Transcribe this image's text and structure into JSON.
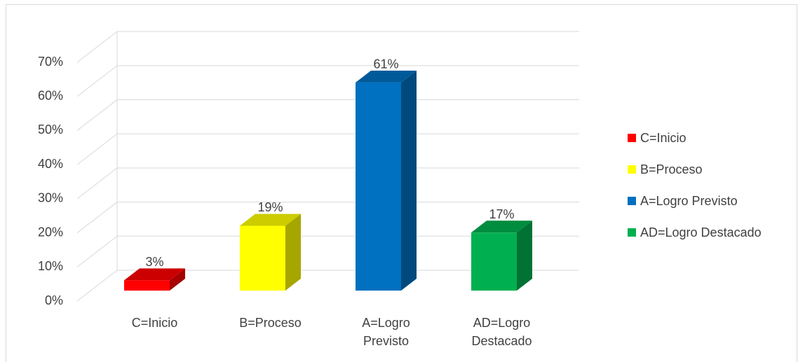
{
  "chart_data": {
    "type": "bar3d",
    "categories": [
      "C=Inicio",
      "B=Proceso",
      "A=Logro Previsto",
      "AD=Logro Destacado"
    ],
    "values": [
      3,
      19,
      61,
      17
    ],
    "value_labels": [
      "3%",
      "19%",
      "61%",
      "17%"
    ],
    "colors": [
      "#ff0000",
      "#ffff00",
      "#0070c0",
      "#00b050"
    ],
    "ylim": [
      0,
      70
    ],
    "yticks": [
      {
        "value": 0,
        "label": "0%"
      },
      {
        "value": 10,
        "label": "10%"
      },
      {
        "value": 20,
        "label": "20%"
      },
      {
        "value": 30,
        "label": "30%"
      },
      {
        "value": 40,
        "label": "40%"
      },
      {
        "value": 50,
        "label": "50%"
      },
      {
        "value": 60,
        "label": "60%"
      },
      {
        "value": 70,
        "label": "70%"
      }
    ],
    "grid": true,
    "legend": "right"
  }
}
